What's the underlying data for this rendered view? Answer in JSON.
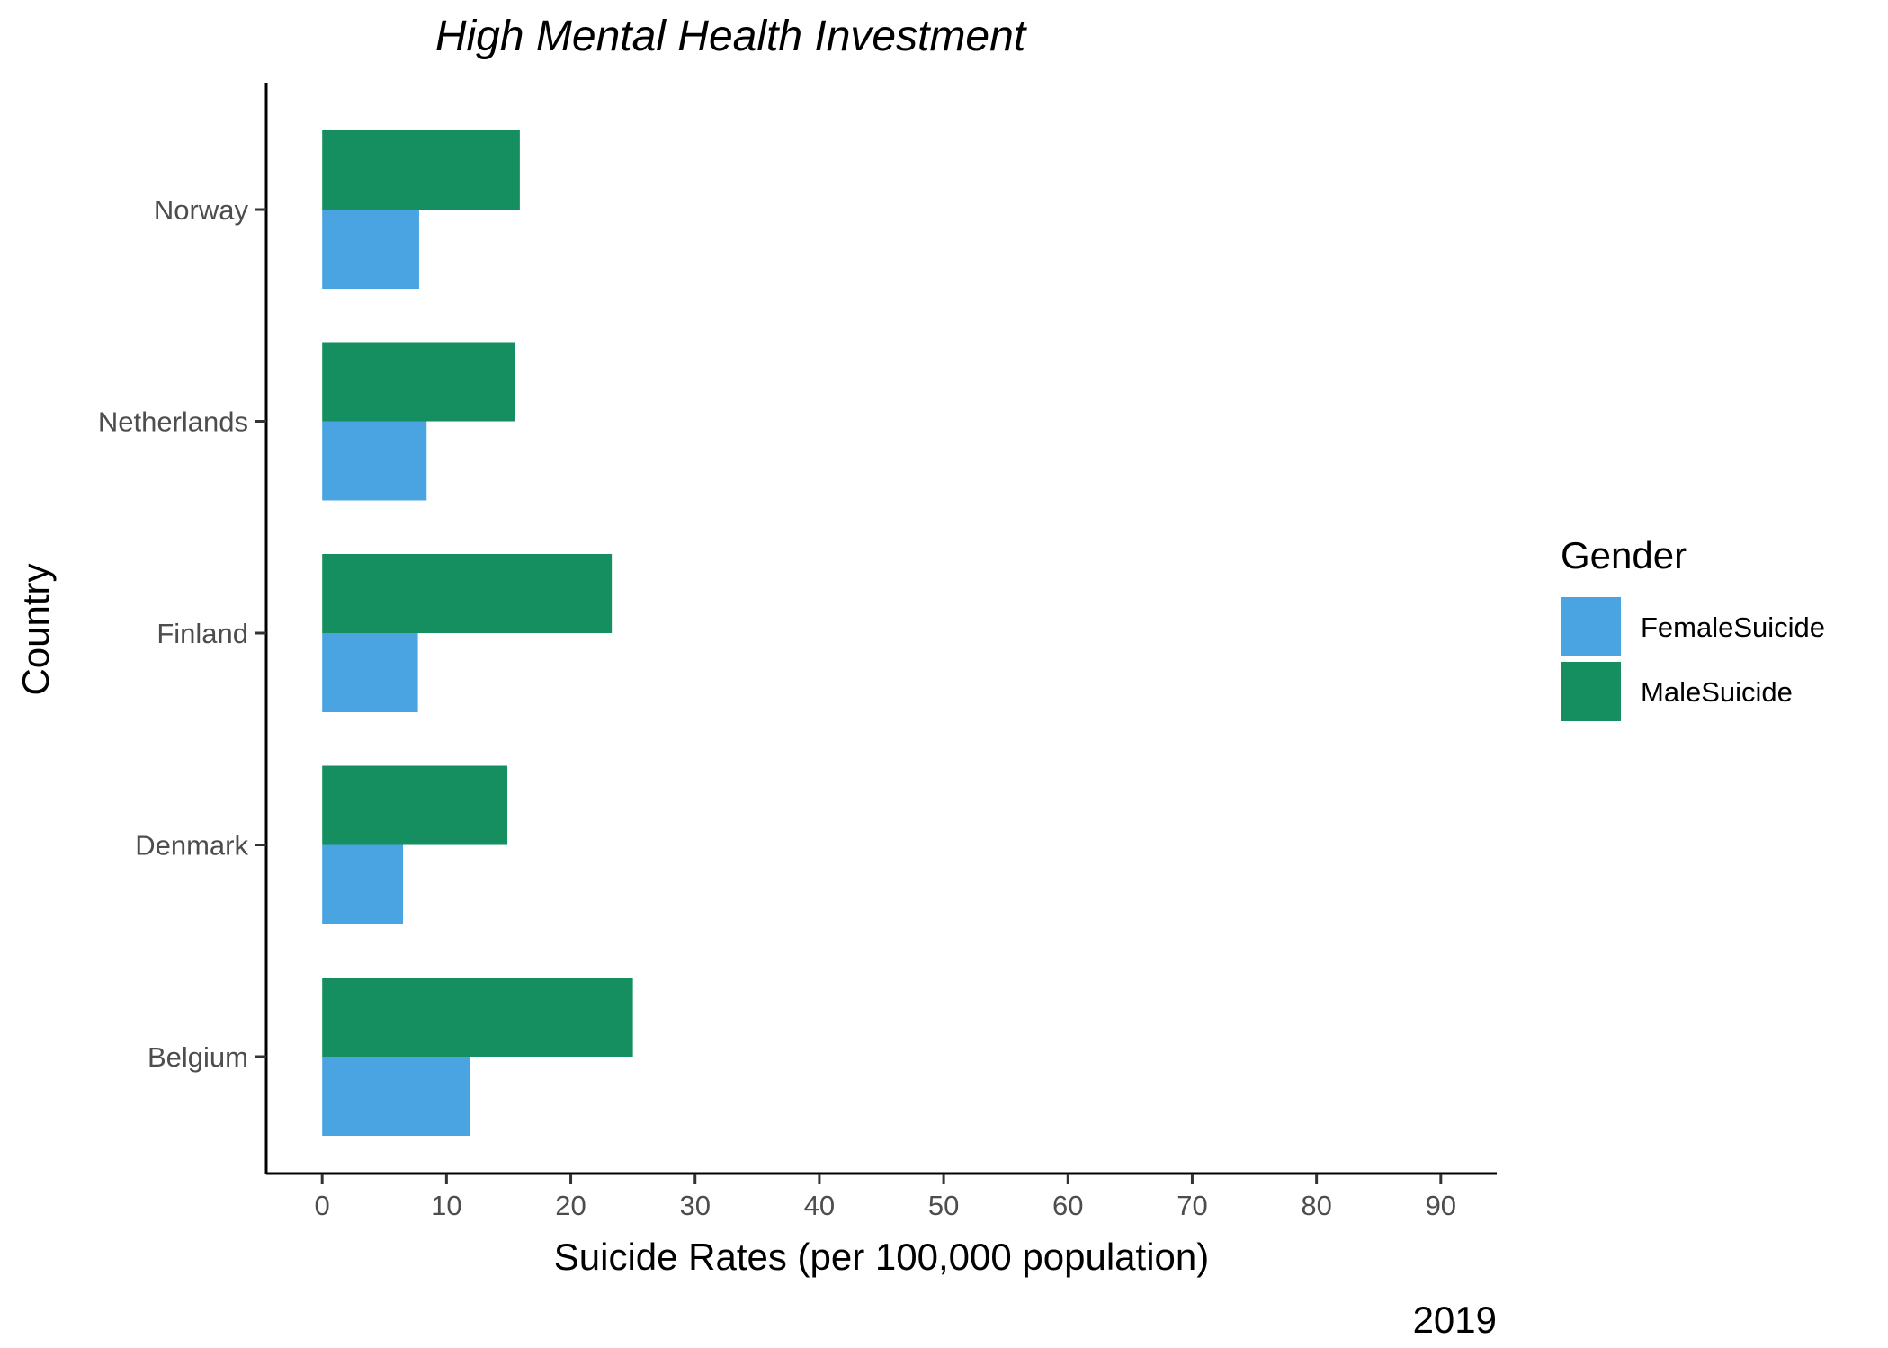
{
  "chart_data": {
    "type": "bar",
    "orientation": "horizontal",
    "title": "High Mental Health Investment",
    "xlabel": "Suicide Rates (per 100,000 population)",
    "ylabel": "Country",
    "caption": "2019",
    "categories": [
      "Norway",
      "Netherlands",
      "Finland",
      "Denmark",
      "Belgium"
    ],
    "series": [
      {
        "name": "MaleSuicide",
        "color": "#168f60",
        "values": [
          15.9,
          15.5,
          23.3,
          14.9,
          25.0
        ]
      },
      {
        "name": "FemaleSuicide",
        "color": "#4aa4e2",
        "values": [
          7.8,
          8.4,
          7.7,
          6.5,
          11.9
        ]
      }
    ],
    "xlim": [
      -4.5,
      94.5
    ],
    "xticks": [
      0,
      10,
      20,
      30,
      40,
      50,
      60,
      70,
      80,
      90
    ],
    "grid": false,
    "legend": {
      "title": "Gender",
      "placement": "right",
      "entries": [
        {
          "name": "FemaleSuicide",
          "color": "#4aa4e2"
        },
        {
          "name": "MaleSuicide",
          "color": "#168f60"
        }
      ]
    }
  }
}
